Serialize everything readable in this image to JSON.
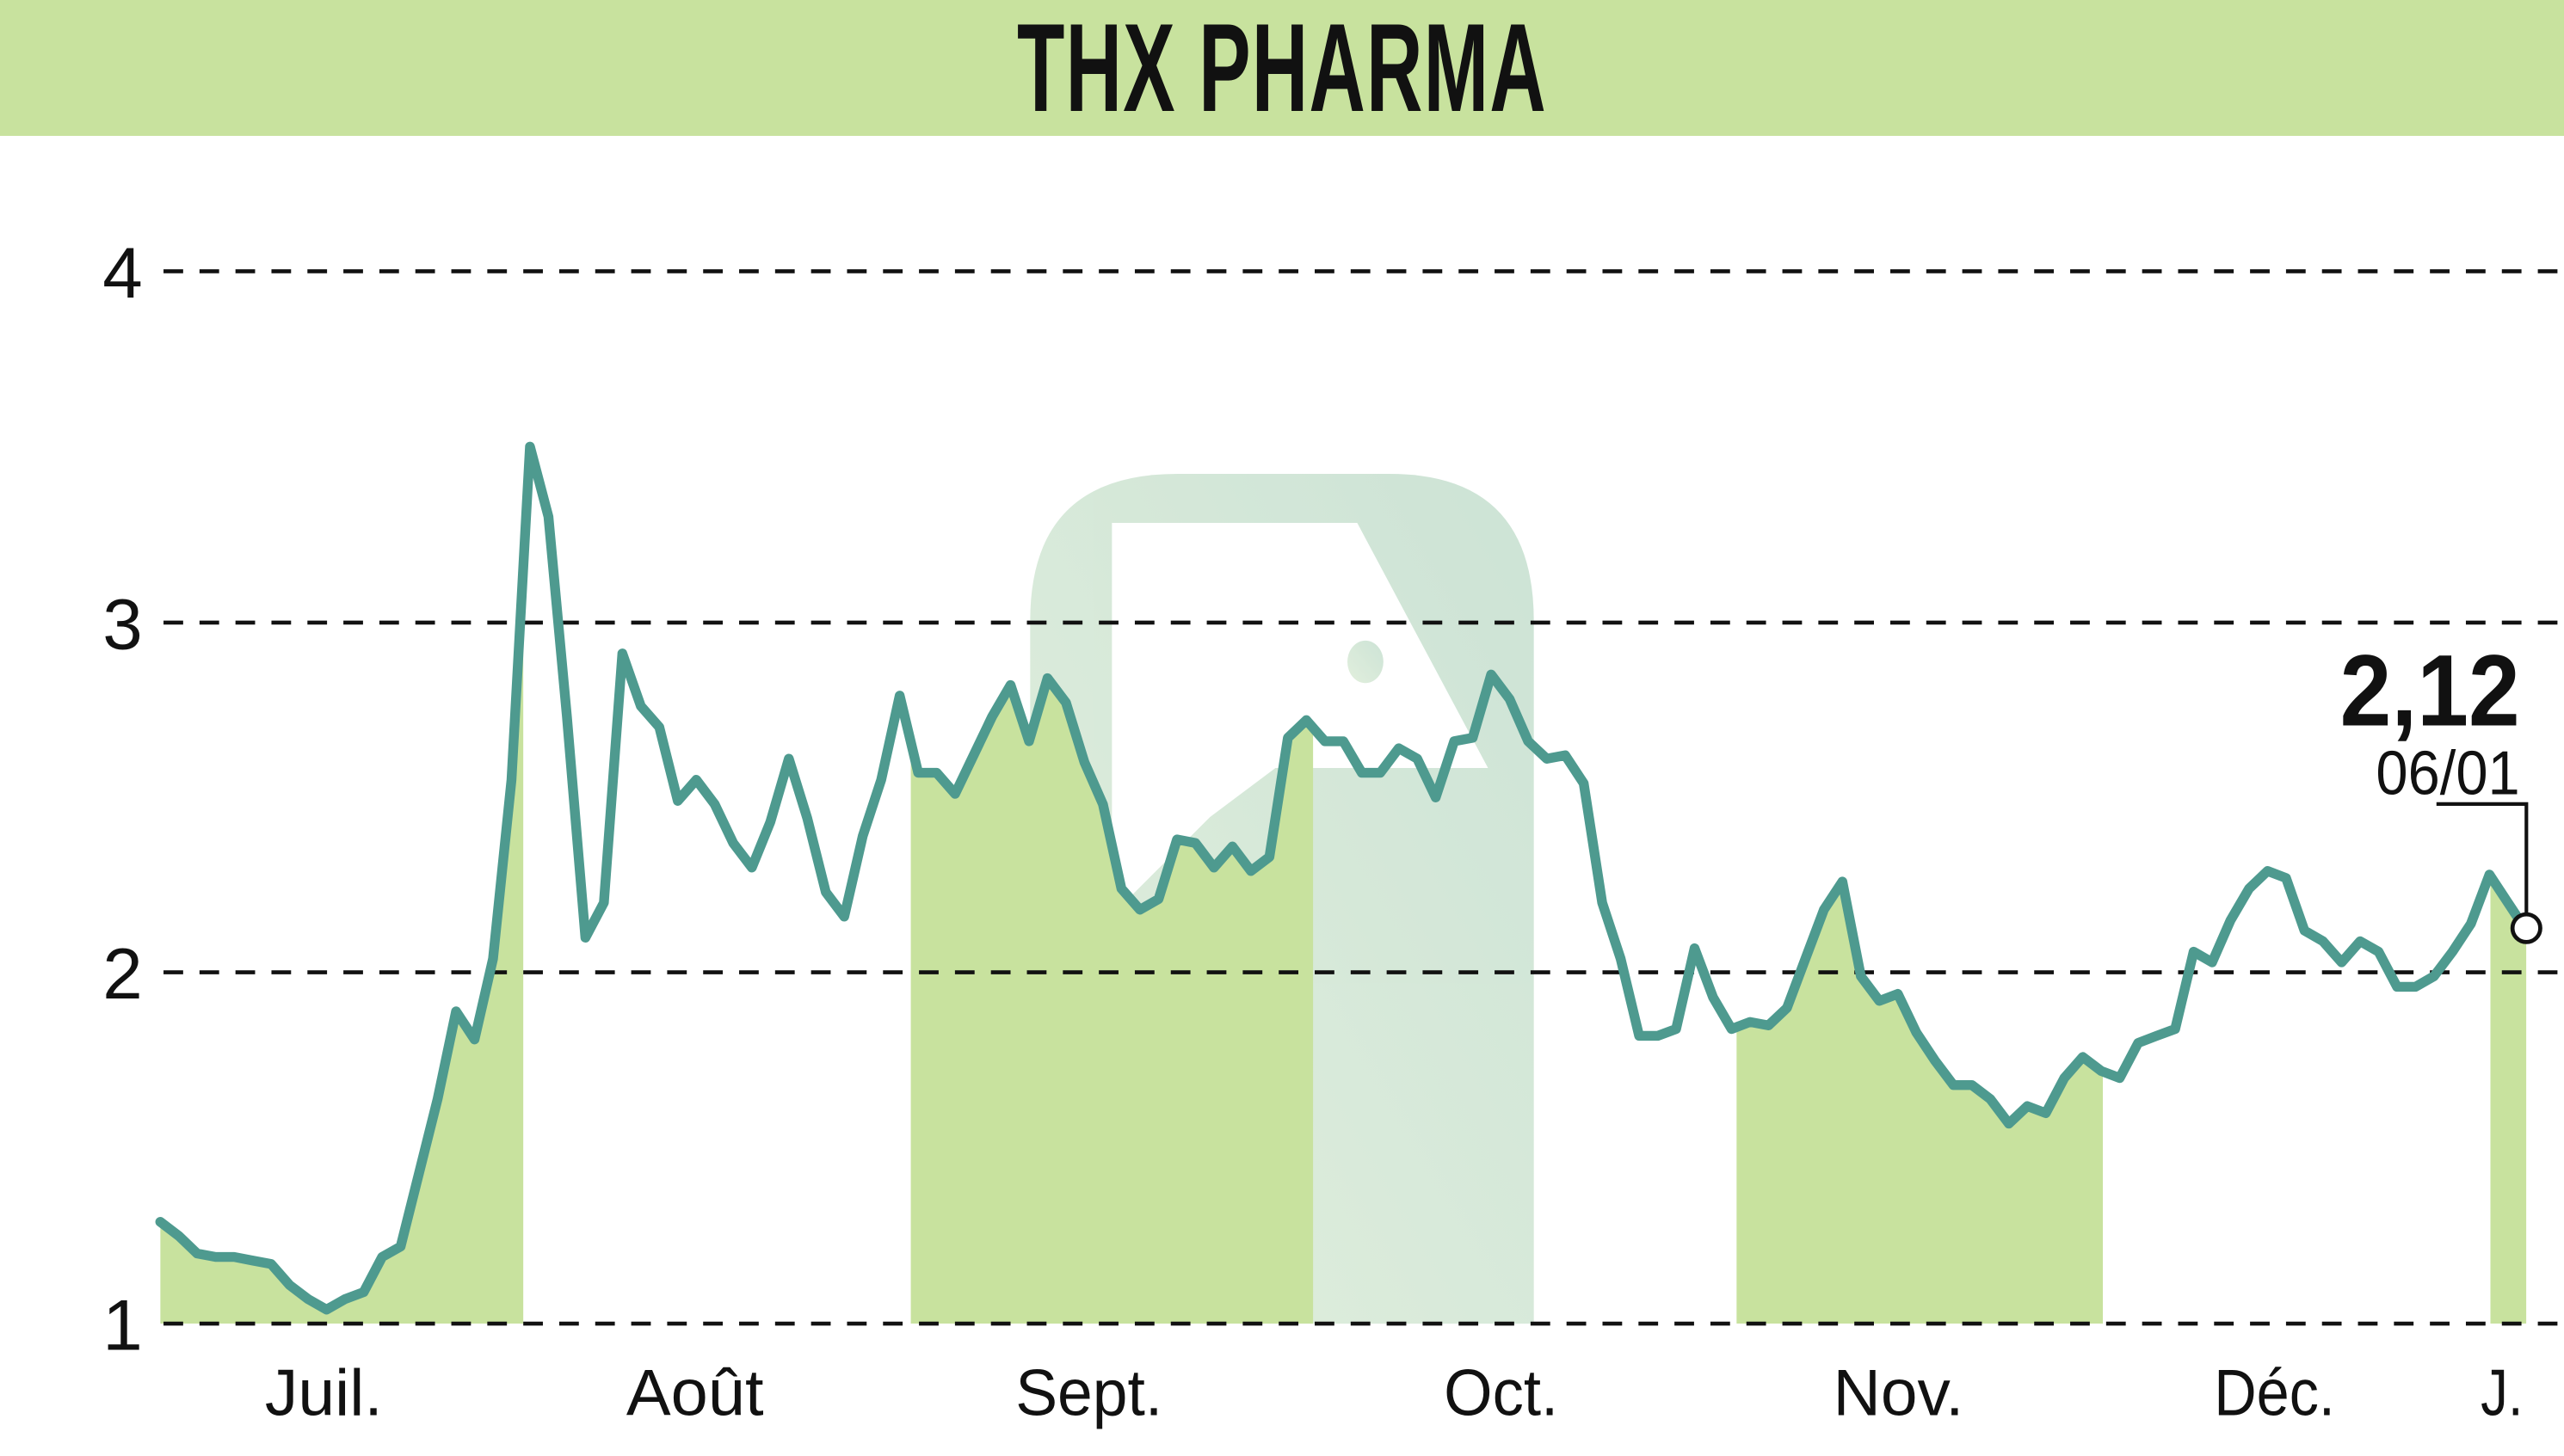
{
  "header": {
    "title": "THX PHARMA"
  },
  "colors": {
    "header_bg": "#c8e29e",
    "line": "#4e9a8f",
    "month_band": "#c8e29e",
    "gridline": "#111111",
    "text": "#111111",
    "watermark": "#c9e1cf"
  },
  "annotation": {
    "value_label": "2,12",
    "date_label": "06/01"
  },
  "chart_data": {
    "type": "line",
    "title": "THX PHARMA",
    "xlabel": "",
    "ylabel": "",
    "ylim": [
      1,
      4
    ],
    "yticks": [
      1,
      2,
      3,
      4
    ],
    "ytick_labels": [
      "1",
      "2",
      "3",
      "4"
    ],
    "grid": true,
    "grid_style": "dashed horizontal",
    "x_month_labels": [
      "Juil.",
      "Août",
      "Sept.",
      "Oct.",
      "Nov.",
      "Déc.",
      "J."
    ],
    "shaded_months": [
      "Juil.",
      "Sept.",
      "Nov.",
      "J."
    ],
    "last_value": 2.12,
    "last_date": "06/01",
    "series": [
      {
        "name": "THX PHARMA",
        "values": [
          1.29,
          1.25,
          1.2,
          1.19,
          1.19,
          1.18,
          1.17,
          1.11,
          1.07,
          1.04,
          1.07,
          1.09,
          1.19,
          1.22,
          1.43,
          1.64,
          1.89,
          1.81,
          2.04,
          2.55,
          3.5,
          3.3,
          2.73,
          2.1,
          2.2,
          2.91,
          2.76,
          2.7,
          2.49,
          2.55,
          2.48,
          2.37,
          2.3,
          2.43,
          2.61,
          2.44,
          2.23,
          2.16,
          2.39,
          2.55,
          2.79,
          2.57,
          2.57,
          2.51,
          2.62,
          2.73,
          2.82,
          2.66,
          2.84,
          2.77,
          2.6,
          2.48,
          2.24,
          2.18,
          2.21,
          2.38,
          2.37,
          2.3,
          2.36,
          2.29,
          2.33,
          2.67,
          2.72,
          2.66,
          2.66,
          2.57,
          2.57,
          2.64,
          2.61,
          2.5,
          2.66,
          2.67,
          2.85,
          2.78,
          2.66,
          2.61,
          2.62,
          2.54,
          2.2,
          2.04,
          1.82,
          1.82,
          1.84,
          2.07,
          1.93,
          1.84,
          1.86,
          1.85,
          1.9,
          2.04,
          2.18,
          2.26,
          1.99,
          1.92,
          1.94,
          1.83,
          1.75,
          1.68,
          1.68,
          1.64,
          1.57,
          1.62,
          1.6,
          1.7,
          1.76,
          1.72,
          1.7,
          1.8,
          1.82,
          1.84,
          2.06,
          2.03,
          2.15,
          2.24,
          2.29,
          2.27,
          2.12,
          2.09,
          2.03,
          2.09,
          2.06,
          1.96,
          1.96,
          1.99,
          2.06,
          2.14,
          2.28,
          2.2,
          2.12
        ]
      }
    ]
  }
}
